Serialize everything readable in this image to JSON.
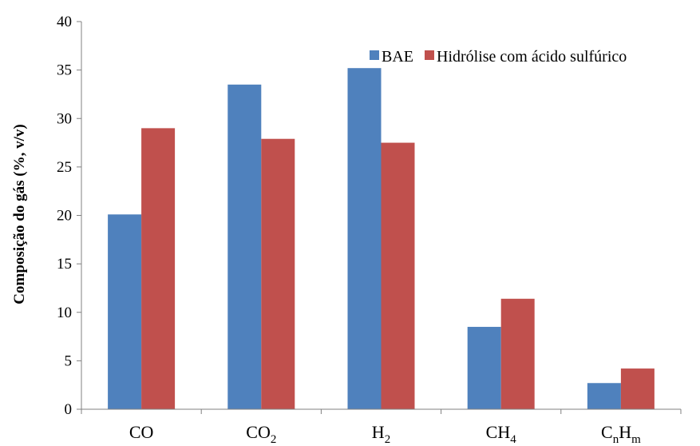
{
  "chart_data": {
    "type": "bar",
    "title": "",
    "xlabel": "",
    "ylabel": "Composição do gás (%, v/v)",
    "ylim": [
      0,
      40
    ],
    "yticks": [
      0,
      5,
      10,
      15,
      20,
      25,
      30,
      35,
      40
    ],
    "categories": [
      {
        "base": "CO",
        "sub": ""
      },
      {
        "base": "CO",
        "sub": "2"
      },
      {
        "base": "H",
        "sub": "2"
      },
      {
        "base": "CH",
        "sub": "4"
      },
      {
        "base": "C",
        "sub": "n",
        "base2": "H",
        "sub2": "m"
      }
    ],
    "series": [
      {
        "name": "BAE",
        "color": "#4F81BD",
        "values": [
          20.1,
          33.5,
          35.2,
          8.5,
          2.7
        ]
      },
      {
        "name": "Hidrólise com ácido sulfúrico",
        "color": "#C0504D",
        "values": [
          29.0,
          27.9,
          27.5,
          11.4,
          4.2
        ]
      }
    ],
    "grid": false,
    "legend": "top-right"
  }
}
